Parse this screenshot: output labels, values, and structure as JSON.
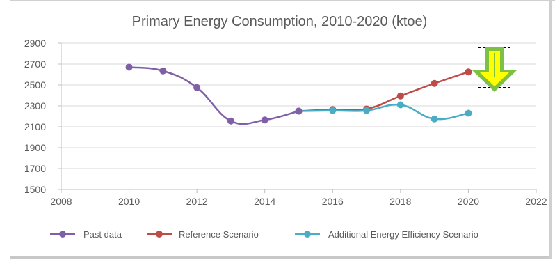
{
  "chart_data": {
    "type": "line",
    "title": "Primary Energy Consumption, 2010-2020 (ktoe)",
    "xlabel": "",
    "ylabel": "",
    "xlim": [
      2008,
      2022
    ],
    "ylim": [
      1500,
      2900
    ],
    "x_ticks": [
      2008,
      2010,
      2012,
      2014,
      2016,
      2018,
      2020,
      2022
    ],
    "y_ticks": [
      1500,
      1700,
      1900,
      2100,
      2300,
      2500,
      2700,
      2900
    ],
    "grid": "horizontal",
    "legend_position": "bottom",
    "series": [
      {
        "name": "Past data",
        "color": "#7f5fa8",
        "points": [
          [
            2010,
            2670
          ],
          [
            2011,
            2635
          ],
          [
            2012,
            2475
          ],
          [
            2013,
            2155
          ],
          [
            2014,
            2165
          ],
          [
            2015,
            2250
          ]
        ]
      },
      {
        "name": "Reference Scenario",
        "color": "#be4b48",
        "points": [
          [
            2015,
            2250
          ],
          [
            2016,
            2265
          ],
          [
            2017,
            2270
          ],
          [
            2018,
            2395
          ],
          [
            2019,
            2515
          ],
          [
            2020,
            2625
          ]
        ]
      },
      {
        "name": "Additional Energy Efficiency Scenario",
        "color": "#4bacc6",
        "points": [
          [
            2015,
            2250
          ],
          [
            2016,
            2255
          ],
          [
            2017,
            2255
          ],
          [
            2018,
            2310
          ],
          [
            2019,
            2175
          ],
          [
            2020,
            2230
          ]
        ]
      }
    ],
    "annotation": {
      "icon": "down-arrow-icon",
      "fill_color": "#ffff00",
      "outline_color": "#7dc142"
    }
  }
}
